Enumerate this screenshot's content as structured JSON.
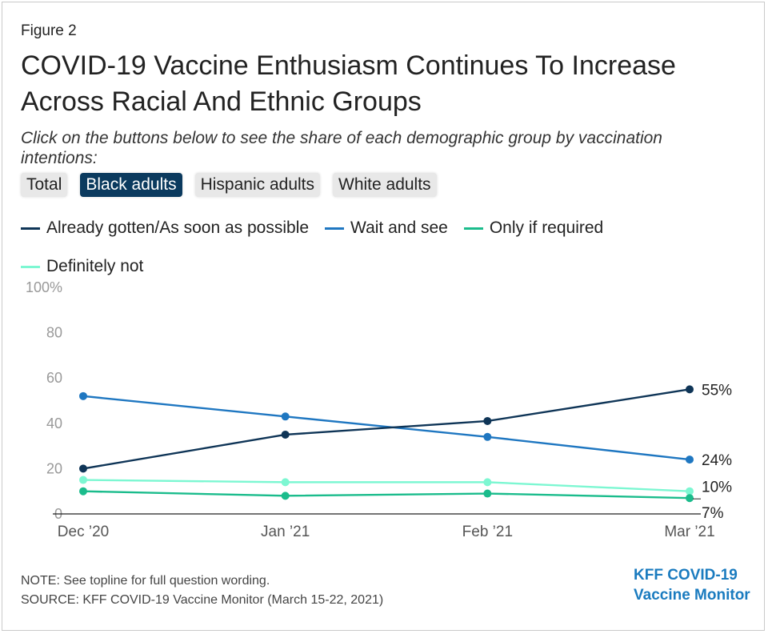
{
  "figure_label": "Figure 2",
  "title": "COVID-19 Vaccine Enthusiasm Continues To Increase Across Racial And Ethnic Groups",
  "subtitle": "Click on the buttons below to see the share of each demographic group by vaccination intentions:",
  "buttons": [
    {
      "label": "Total",
      "active": false
    },
    {
      "label": "Black adults",
      "active": true
    },
    {
      "label": "Hispanic adults",
      "active": false
    },
    {
      "label": "White adults",
      "active": false
    }
  ],
  "colors": {
    "active_button": "#0b3a5e",
    "axis": "#222222",
    "tick_text": "#999999",
    "logo": "#1a7bbf"
  },
  "chart_data": {
    "type": "line",
    "x": [
      "Dec ’20",
      "Jan ’21",
      "Feb ’21",
      "Mar ’21"
    ],
    "ylim": [
      0,
      100
    ],
    "yticks": [
      0,
      20,
      40,
      60,
      80,
      100
    ],
    "ytick_labels": [
      "0",
      "20",
      "40",
      "60",
      "80",
      "100%"
    ],
    "grid": false,
    "legend_position": "top",
    "series": [
      {
        "name": "Already gotten/As soon as possible",
        "color": "#0f3557",
        "values": [
          20,
          35,
          41,
          55
        ],
        "end_label": "55%"
      },
      {
        "name": "Wait and see",
        "color": "#1f77c1",
        "values": [
          52,
          43,
          34,
          24
        ],
        "end_label": "24%"
      },
      {
        "name": "Only if required",
        "color": "#1bbc8c",
        "values": [
          10,
          8,
          9,
          7
        ],
        "end_label": "7%"
      },
      {
        "name": "Definitely not",
        "color": "#7df7d2",
        "values": [
          15,
          14,
          14,
          10
        ],
        "end_label": "10%"
      }
    ]
  },
  "note": "NOTE: See topline for full question wording.",
  "source": "SOURCE: KFF COVID-19 Vaccine Monitor (March 15-22, 2021)",
  "logo": {
    "line1": "KFF COVID-19",
    "line2": "Vaccine Monitor"
  }
}
